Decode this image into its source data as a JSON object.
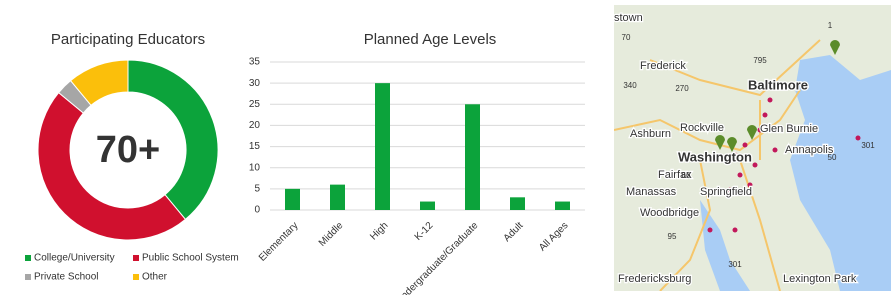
{
  "chart_data": [
    {
      "type": "donut",
      "title": "Participating Educators",
      "center_label": "70+",
      "categories": [
        "College/University",
        "Public School System",
        "Private School",
        "Other"
      ],
      "values": [
        39,
        47,
        3,
        11
      ],
      "colors": [
        "#0ca33b",
        "#d0102e",
        "#a6a6a6",
        "#fbbf0b"
      ]
    },
    {
      "type": "bar",
      "title": "Planned Age Levels",
      "categories": [
        "Elementary",
        "Middle",
        "High",
        "K-12",
        "Undergraduate/Graduate",
        "Adult",
        "All Ages"
      ],
      "values": [
        5,
        6,
        30,
        2,
        25,
        3,
        2
      ],
      "color": "#0ca33b",
      "ylim": [
        0,
        35
      ],
      "yticks": [
        0,
        5,
        10,
        15,
        20,
        25,
        30,
        35
      ],
      "grid": true
    }
  ],
  "map": {
    "labels": [
      "stown",
      "Frederick",
      "Baltimore",
      "Rockville",
      "Ashburn",
      "Glen Burnie",
      "Washington",
      "Annapolis",
      "Fairfax",
      "Manassas",
      "Springfield",
      "Woodbridge",
      "Fredericksburg",
      "Lexington Park"
    ],
    "shields": [
      "1",
      "70",
      "795",
      "340",
      "270",
      "50",
      "301",
      "66",
      "95",
      "301"
    ]
  }
}
